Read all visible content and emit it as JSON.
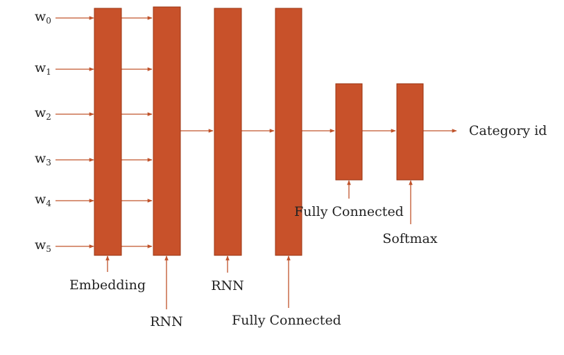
{
  "colors": {
    "layer_fill": "#c8512a",
    "layer_stroke": "#9a3412",
    "arrow": "#c0532b",
    "text": "#222222"
  },
  "inputs": [
    {
      "base": "w",
      "sub": "0"
    },
    {
      "base": "w",
      "sub": "1"
    },
    {
      "base": "w",
      "sub": "2"
    },
    {
      "base": "w",
      "sub": "3"
    },
    {
      "base": "w",
      "sub": "4"
    },
    {
      "base": "w",
      "sub": "5"
    }
  ],
  "layers": [
    {
      "label": "Embedding"
    },
    {
      "label": "RNN"
    },
    {
      "label": "RNN"
    },
    {
      "label": "Fully Connected"
    },
    {
      "label": "Fully Connected"
    },
    {
      "label": "Softmax"
    }
  ],
  "output": {
    "label": "Category id"
  }
}
